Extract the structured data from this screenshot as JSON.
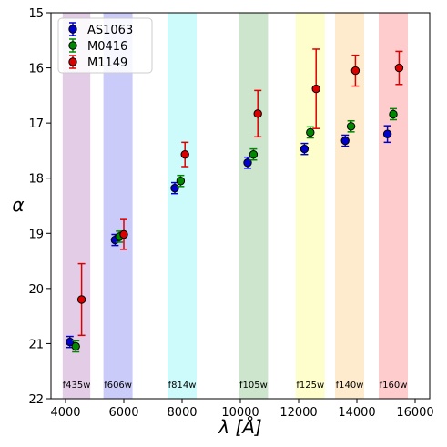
{
  "chart_data": {
    "type": "scatter",
    "title": "",
    "xlabel": "λ [Å]",
    "ylabel": "α",
    "xlim": [
      3500,
      16500
    ],
    "ylim": [
      15,
      22
    ],
    "y_inverted": true,
    "grid": false,
    "legend_position": "top-left",
    "xticks": [
      4000,
      6000,
      8000,
      10000,
      12000,
      14000,
      16000
    ],
    "yticks": [
      15,
      16,
      17,
      18,
      19,
      20,
      21,
      22
    ],
    "bands": [
      {
        "label": "f435w",
        "x0": 3900,
        "x1": 4850,
        "color": "#e3cde6"
      },
      {
        "label": "f606w",
        "x0": 5300,
        "x1": 6300,
        "color": "#cbcbfa"
      },
      {
        "label": "f814w",
        "x0": 7500,
        "x1": 8500,
        "color": "#cdfbfb"
      },
      {
        "label": "f105w",
        "x0": 9950,
        "x1": 10950,
        "color": "#cce5cc"
      },
      {
        "label": "f125w",
        "x0": 11900,
        "x1": 12900,
        "color": "#fefecc"
      },
      {
        "label": "f140w",
        "x0": 13250,
        "x1": 14250,
        "color": "#feebcd"
      },
      {
        "label": "f160w",
        "x0": 14750,
        "x1": 15750,
        "color": "#fecccc"
      }
    ],
    "series": [
      {
        "name": "AS1063",
        "color": "#0000cc",
        "x": [
          4150,
          5700,
          7750,
          10250,
          12200,
          13600,
          15050
        ],
        "y": [
          20.97,
          19.12,
          18.18,
          17.72,
          17.47,
          17.32,
          17.2
        ],
        "yerr": [
          0.1,
          0.1,
          0.1,
          0.1,
          0.1,
          0.1,
          0.15
        ]
      },
      {
        "name": "M0416",
        "color": "#008800",
        "x": [
          4350,
          5850,
          7950,
          10450,
          12400,
          13800,
          15250
        ],
        "y": [
          21.05,
          19.06,
          18.05,
          17.57,
          17.17,
          17.06,
          16.84
        ],
        "yerr": [
          0.1,
          0.1,
          0.1,
          0.1,
          0.1,
          0.1,
          0.1
        ]
      },
      {
        "name": "M1149",
        "color": "#dd0000",
        "x": [
          4550,
          6000,
          8100,
          10600,
          12600,
          13950,
          15450
        ],
        "y": [
          20.2,
          19.02,
          17.57,
          16.83,
          16.38,
          16.05,
          16.0
        ],
        "yerr": [
          0.65,
          0.27,
          0.22,
          0.42,
          0.72,
          0.28,
          0.3
        ]
      }
    ]
  }
}
